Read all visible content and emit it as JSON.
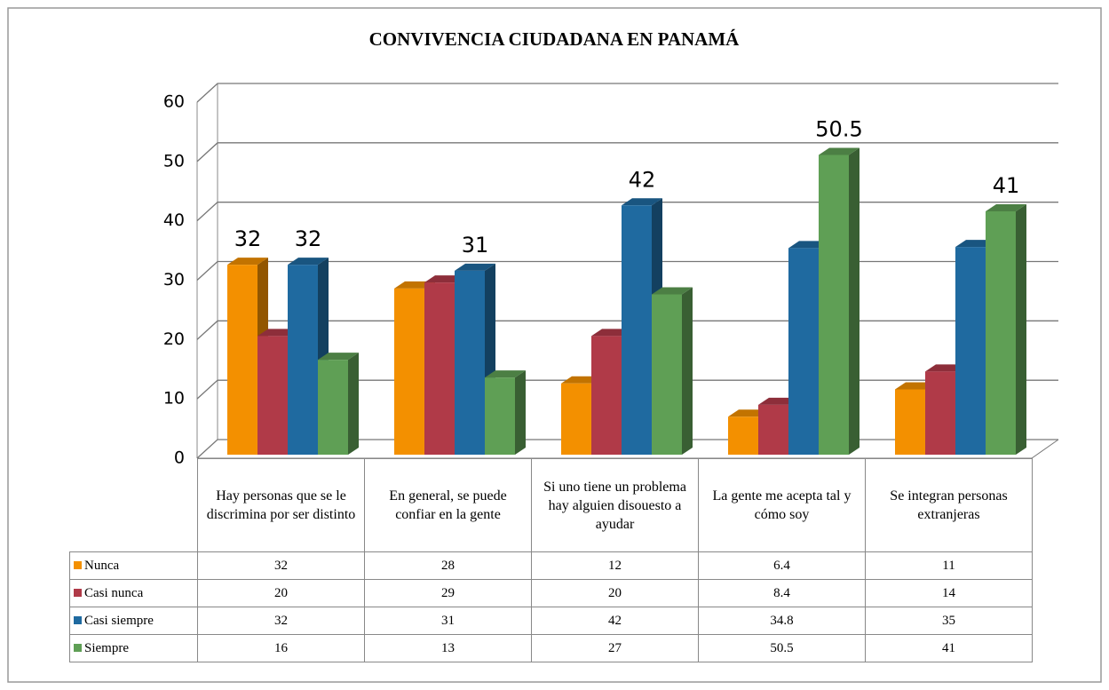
{
  "chart_data": {
    "type": "bar3d",
    "title": "CONVIVENCIA CIUDADANA EN PANAMÁ",
    "categories": [
      "Hay personas que se le discrimina por ser distinto",
      "En general, se puede confiar en la gente",
      "Si uno tiene un problema hay alguien disouesto a ayudar",
      "La gente me acepta tal y cómo soy",
      "Se integran personas extranjeras"
    ],
    "series": [
      {
        "name": "Nunca",
        "color": "#f39000",
        "values": [
          32,
          28,
          12,
          6.4,
          11
        ]
      },
      {
        "name": "Casi nunca",
        "color": "#b03a48",
        "values": [
          20,
          29,
          20,
          8.4,
          14
        ]
      },
      {
        "name": "Casi siempre",
        "color": "#1f6aa0",
        "values": [
          32,
          31,
          42,
          34.8,
          35
        ]
      },
      {
        "name": "Siempre",
        "color": "#5f9f55",
        "values": [
          16,
          13,
          27,
          50.5,
          41
        ]
      }
    ],
    "ylim": [
      0,
      60
    ],
    "yticks": [
      0,
      10,
      20,
      30,
      40,
      50,
      60
    ],
    "grid": true,
    "data_table": true
  }
}
